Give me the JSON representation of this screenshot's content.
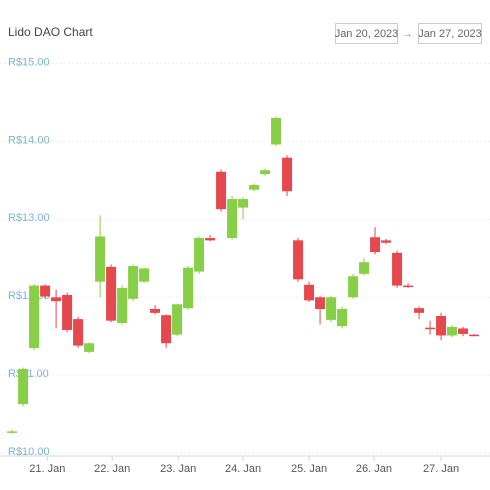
{
  "chart_data": {
    "type": "candlestick",
    "title": "Lido DAO Chart",
    "date_from": "Jan 20, 2023",
    "arrow": "→",
    "date_to": "Jan 27, 2023",
    "x": [
      0,
      1,
      2,
      3,
      4,
      5,
      6,
      7,
      8,
      9,
      10,
      11,
      12,
      13,
      14,
      15,
      16,
      17,
      18,
      19,
      20,
      21,
      22,
      23,
      24,
      25,
      26,
      27,
      28,
      29,
      30,
      31,
      32,
      33,
      34,
      35,
      36,
      37,
      38,
      39,
      40,
      41,
      42
    ],
    "open": [
      10.27,
      10.63,
      11.35,
      12.15,
      12.0,
      12.03,
      11.72,
      11.3,
      12.2,
      12.39,
      11.67,
      11.98,
      12.2,
      11.85,
      11.77,
      11.52,
      11.86,
      12.33,
      12.76,
      13.61,
      12.76,
      13.15,
      13.38,
      13.58,
      13.96,
      13.79,
      12.73,
      12.16,
      12.0,
      11.71,
      11.63,
      12.0,
      12.3,
      12.77,
      12.73,
      12.57,
      12.15,
      11.86,
      11.61,
      11.76,
      11.51,
      11.6,
      11.52
    ],
    "high": [
      10.3,
      11.1,
      12.17,
      12.17,
      12.1,
      12.06,
      11.75,
      11.42,
      13.05,
      12.42,
      12.15,
      12.42,
      12.38,
      11.9,
      11.78,
      11.92,
      12.4,
      12.78,
      12.8,
      13.64,
      13.3,
      13.28,
      13.46,
      13.65,
      14.32,
      13.82,
      12.76,
      12.2,
      12.02,
      12.02,
      11.88,
      12.3,
      12.5,
      12.9,
      12.75,
      12.6,
      12.18,
      11.88,
      11.7,
      11.8,
      11.64,
      11.62,
      11.53
    ],
    "low": [
      10.25,
      10.6,
      11.32,
      11.98,
      11.6,
      11.55,
      11.35,
      11.28,
      12.0,
      11.68,
      11.65,
      11.95,
      12.18,
      11.78,
      11.35,
      11.5,
      11.84,
      12.3,
      12.72,
      13.1,
      12.74,
      13.0,
      13.36,
      13.56,
      13.94,
      13.3,
      12.2,
      11.94,
      11.65,
      11.68,
      11.6,
      11.98,
      12.28,
      12.55,
      12.68,
      12.12,
      12.12,
      11.72,
      11.52,
      11.45,
      11.49,
      11.5,
      11.5
    ],
    "close": [
      10.28,
      11.08,
      12.15,
      12.01,
      11.95,
      11.58,
      11.38,
      11.41,
      12.78,
      11.7,
      12.12,
      12.4,
      12.37,
      11.8,
      11.41,
      11.91,
      12.38,
      12.76,
      12.73,
      13.13,
      13.26,
      13.26,
      13.44,
      13.63,
      14.3,
      13.36,
      12.23,
      11.96,
      11.85,
      12.0,
      11.85,
      12.27,
      12.45,
      12.58,
      12.7,
      12.15,
      12.14,
      11.8,
      11.6,
      11.51,
      11.62,
      11.53,
      11.51
    ],
    "up_color": "#86cf46",
    "down_color": "#e5484d",
    "xlim": [
      -1.1,
      43.45
    ],
    "xticks": [
      {
        "value": 3.2,
        "label": "21. Jan"
      },
      {
        "value": 9.1,
        "label": "22. Jan"
      },
      {
        "value": 15.1,
        "label": "23. Jan"
      },
      {
        "value": 21.0,
        "label": "24. Jan"
      },
      {
        "value": 27.0,
        "label": "25. Jan"
      },
      {
        "value": 32.9,
        "label": "26. Jan"
      },
      {
        "value": 39.0,
        "label": "27. Jan"
      }
    ],
    "ylim": [
      9.9,
      15.3
    ],
    "yticks": [
      {
        "value": 10,
        "label": "R$10.00"
      },
      {
        "value": 11,
        "label": "R$11.00"
      },
      {
        "value": 12,
        "label": "R$12.00"
      },
      {
        "value": 13,
        "label": "R$13.00"
      },
      {
        "value": 14,
        "label": "R$14.00"
      },
      {
        "value": 15,
        "label": "R$15.00"
      }
    ],
    "grid": true
  }
}
